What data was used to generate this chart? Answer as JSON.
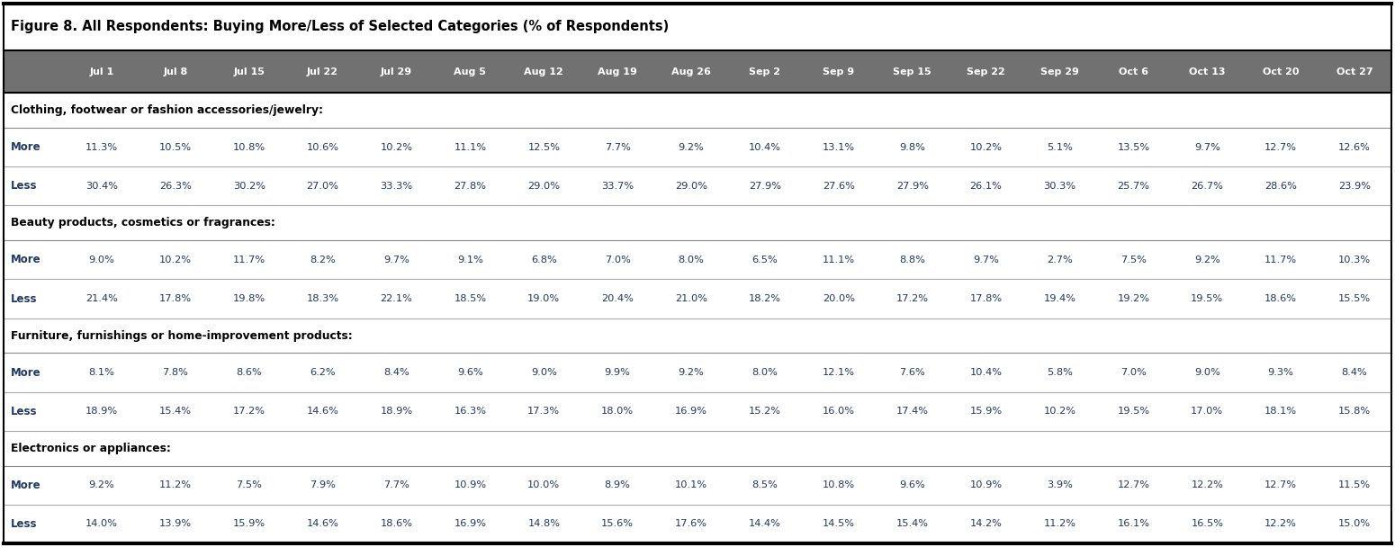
{
  "title": "Figure 8. All Respondents: Buying More/Less of Selected Categories (% of Respondents)",
  "columns": [
    "",
    "Jul 1",
    "Jul 8",
    "Jul 15",
    "Jul 22",
    "Jul 29",
    "Aug 5",
    "Aug 12",
    "Aug 19",
    "Aug 26",
    "Sep 2",
    "Sep 9",
    "Sep 15",
    "Sep 22",
    "Sep 29",
    "Oct 6",
    "Oct 13",
    "Oct 20",
    "Oct 27"
  ],
  "header_bg": "#717171",
  "header_fg": "#ffffff",
  "row_label_fg": "#1F3864",
  "data_fg": "#1F3864",
  "title_top_border_color": "#000000",
  "title_bottom_border_color": "#000000",
  "section_label_color": "#000000",
  "row_divider_color": "#999999",
  "section_divider_color": "#555555",
  "outer_border_color": "#000000",
  "sections": [
    {
      "label": "Clothing, footwear or fashion accessories/jewelry:",
      "rows": [
        {
          "label": "More",
          "values": [
            "11.3%",
            "10.5%",
            "10.8%",
            "10.6%",
            "10.2%",
            "11.1%",
            "12.5%",
            "7.7%",
            "9.2%",
            "10.4%",
            "13.1%",
            "9.8%",
            "10.2%",
            "5.1%",
            "13.5%",
            "9.7%",
            "12.7%",
            "12.6%"
          ]
        },
        {
          "label": "Less",
          "values": [
            "30.4%",
            "26.3%",
            "30.2%",
            "27.0%",
            "33.3%",
            "27.8%",
            "29.0%",
            "33.7%",
            "29.0%",
            "27.9%",
            "27.6%",
            "27.9%",
            "26.1%",
            "30.3%",
            "25.7%",
            "26.7%",
            "28.6%",
            "23.9%"
          ]
        }
      ]
    },
    {
      "label": "Beauty products, cosmetics or fragrances:",
      "rows": [
        {
          "label": "More",
          "values": [
            "9.0%",
            "10.2%",
            "11.7%",
            "8.2%",
            "9.7%",
            "9.1%",
            "6.8%",
            "7.0%",
            "8.0%",
            "6.5%",
            "11.1%",
            "8.8%",
            "9.7%",
            "2.7%",
            "7.5%",
            "9.2%",
            "11.7%",
            "10.3%"
          ]
        },
        {
          "label": "Less",
          "values": [
            "21.4%",
            "17.8%",
            "19.8%",
            "18.3%",
            "22.1%",
            "18.5%",
            "19.0%",
            "20.4%",
            "21.0%",
            "18.2%",
            "20.0%",
            "17.2%",
            "17.8%",
            "19.4%",
            "19.2%",
            "19.5%",
            "18.6%",
            "15.5%"
          ]
        }
      ]
    },
    {
      "label": "Furniture, furnishings or home-improvement products:",
      "rows": [
        {
          "label": "More",
          "values": [
            "8.1%",
            "7.8%",
            "8.6%",
            "6.2%",
            "8.4%",
            "9.6%",
            "9.0%",
            "9.9%",
            "9.2%",
            "8.0%",
            "12.1%",
            "7.6%",
            "10.4%",
            "5.8%",
            "7.0%",
            "9.0%",
            "9.3%",
            "8.4%"
          ]
        },
        {
          "label": "Less",
          "values": [
            "18.9%",
            "15.4%",
            "17.2%",
            "14.6%",
            "18.9%",
            "16.3%",
            "17.3%",
            "18.0%",
            "16.9%",
            "15.2%",
            "16.0%",
            "17.4%",
            "15.9%",
            "10.2%",
            "19.5%",
            "17.0%",
            "18.1%",
            "15.8%"
          ]
        }
      ]
    },
    {
      "label": "Electronics or appliances:",
      "rows": [
        {
          "label": "More",
          "values": [
            "9.2%",
            "11.2%",
            "7.5%",
            "7.9%",
            "7.7%",
            "10.9%",
            "10.0%",
            "8.9%",
            "10.1%",
            "8.5%",
            "10.8%",
            "9.6%",
            "10.9%",
            "3.9%",
            "12.7%",
            "12.2%",
            "12.7%",
            "11.5%"
          ]
        },
        {
          "label": "Less",
          "values": [
            "14.0%",
            "13.9%",
            "15.9%",
            "14.6%",
            "18.6%",
            "16.9%",
            "14.8%",
            "15.6%",
            "17.6%",
            "14.4%",
            "14.5%",
            "15.4%",
            "14.2%",
            "11.2%",
            "16.1%",
            "16.5%",
            "12.2%",
            "15.0%"
          ]
        }
      ]
    }
  ]
}
